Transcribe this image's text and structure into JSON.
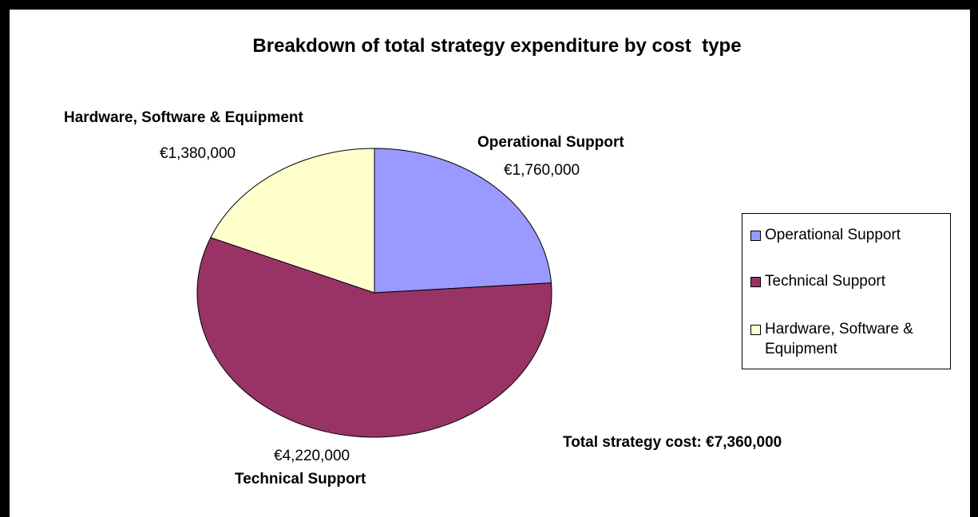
{
  "chart_data": {
    "type": "pie",
    "title": "Breakdown of total strategy expenditure by cost  type",
    "slices": [
      {
        "name": "Operational Support",
        "value": 1760000,
        "value_label": "€1,760,000",
        "color": "#9999ff"
      },
      {
        "name": "Technical Support",
        "value": 4220000,
        "value_label": "€4,220,000",
        "color": "#993366"
      },
      {
        "name": "Hardware, Software & Equipment",
        "value": 1380000,
        "value_label": "€1,380,000",
        "color": "#ffffcc"
      }
    ],
    "legend": {
      "placement": "right",
      "entries": [
        "Operational Support",
        "Technical Support",
        "Hardware, Software & Equipment"
      ]
    },
    "total_label": "Total strategy cost: €7,360,000"
  }
}
